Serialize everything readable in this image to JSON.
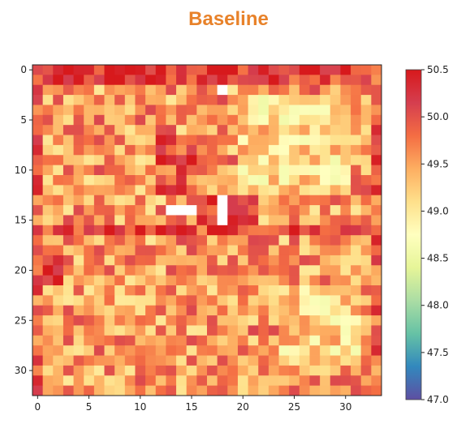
{
  "chart_data": {
    "type": "heatmap",
    "title": "Baseline",
    "xlabel": "",
    "ylabel": "",
    "rows": 33,
    "cols": 34,
    "xlim": [
      -0.5,
      33.5
    ],
    "ylim": [
      -0.5,
      32.5
    ],
    "x_ticks": [
      0,
      5,
      10,
      15,
      20,
      25,
      30
    ],
    "y_ticks": [
      0,
      5,
      10,
      15,
      20,
      25,
      30
    ],
    "colorbar": {
      "min": 47.0,
      "max": 50.5,
      "ticks": [
        "50.5",
        "50.0",
        "49.5",
        "49.0",
        "48.5",
        "48.0",
        "47.5",
        "47.0"
      ],
      "colormap": "Spectral_r"
    },
    "value_range": [
      47.0,
      50.5
    ],
    "missing_cells": [
      {
        "row": 2,
        "col": 18
      },
      {
        "row": 14,
        "col": 13
      },
      {
        "row": 14,
        "col": 14
      },
      {
        "row": 14,
        "col": 15
      },
      {
        "row": 13,
        "col": 18
      },
      {
        "row": 14,
        "col": 18
      },
      {
        "row": 15,
        "col": 18
      }
    ],
    "grid": false
  },
  "title_color": "#e8822a"
}
